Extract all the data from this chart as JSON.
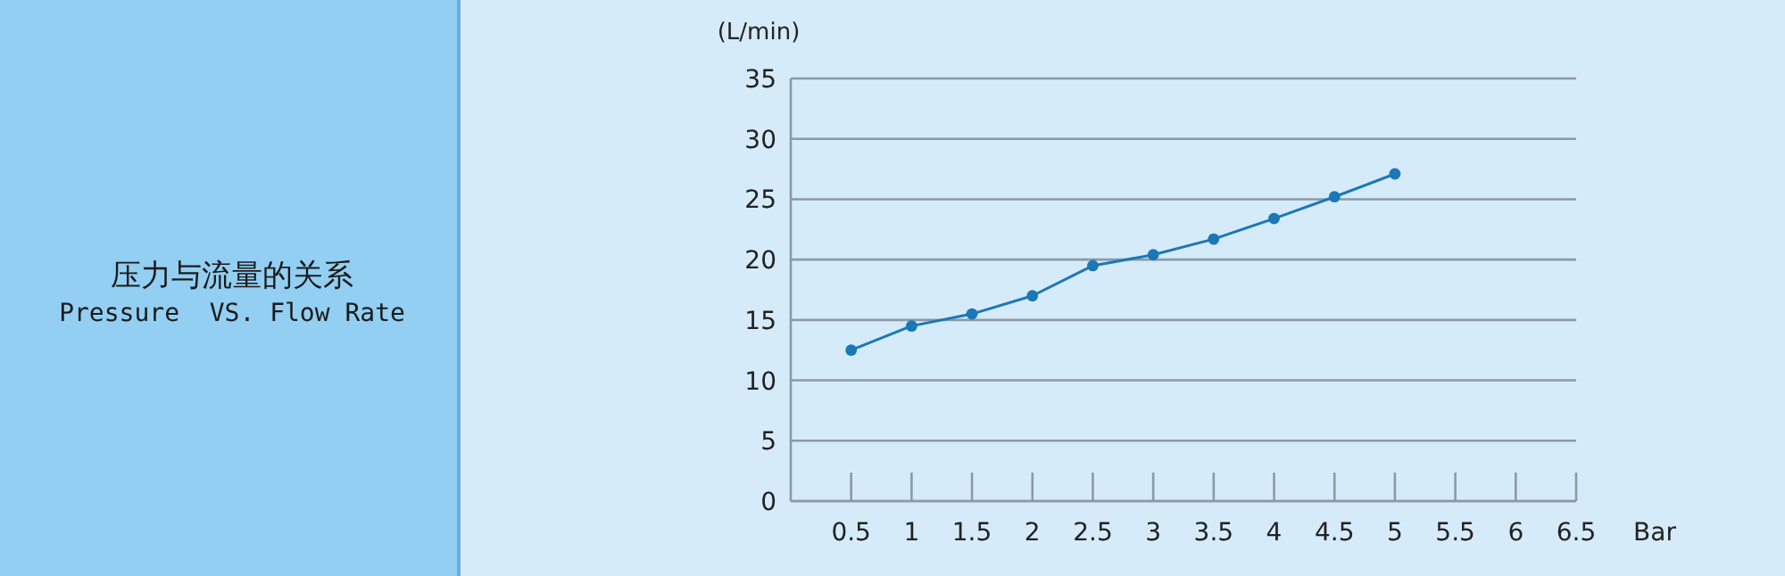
{
  "chart_data": {
    "type": "line",
    "title": "压力与流量的关系",
    "subtitle": "Pressure  VS. Flow Rate",
    "xlabel": "Bar",
    "ylabel": "(L/min)",
    "x": [
      0.5,
      1,
      1.5,
      2,
      2.5,
      3,
      3.5,
      4,
      4.5,
      5
    ],
    "series": [
      {
        "color": "#1a78b6",
        "values": [
          12.5,
          14.5,
          15.5,
          17.0,
          19.5,
          20.4,
          21.7,
          23.4,
          25.2,
          27.1
        ]
      }
    ],
    "xlim": [
      0,
      6.5
    ],
    "xticks": [
      0.5,
      1,
      1.5,
      2,
      2.5,
      3,
      3.5,
      4,
      4.5,
      5,
      5.5,
      6,
      6.5
    ],
    "ylim": [
      0,
      35
    ],
    "yticks": [
      0,
      5,
      10,
      15,
      20,
      25,
      30,
      35
    ],
    "grid": "y",
    "marker": "circle",
    "line_style": "solid"
  }
}
